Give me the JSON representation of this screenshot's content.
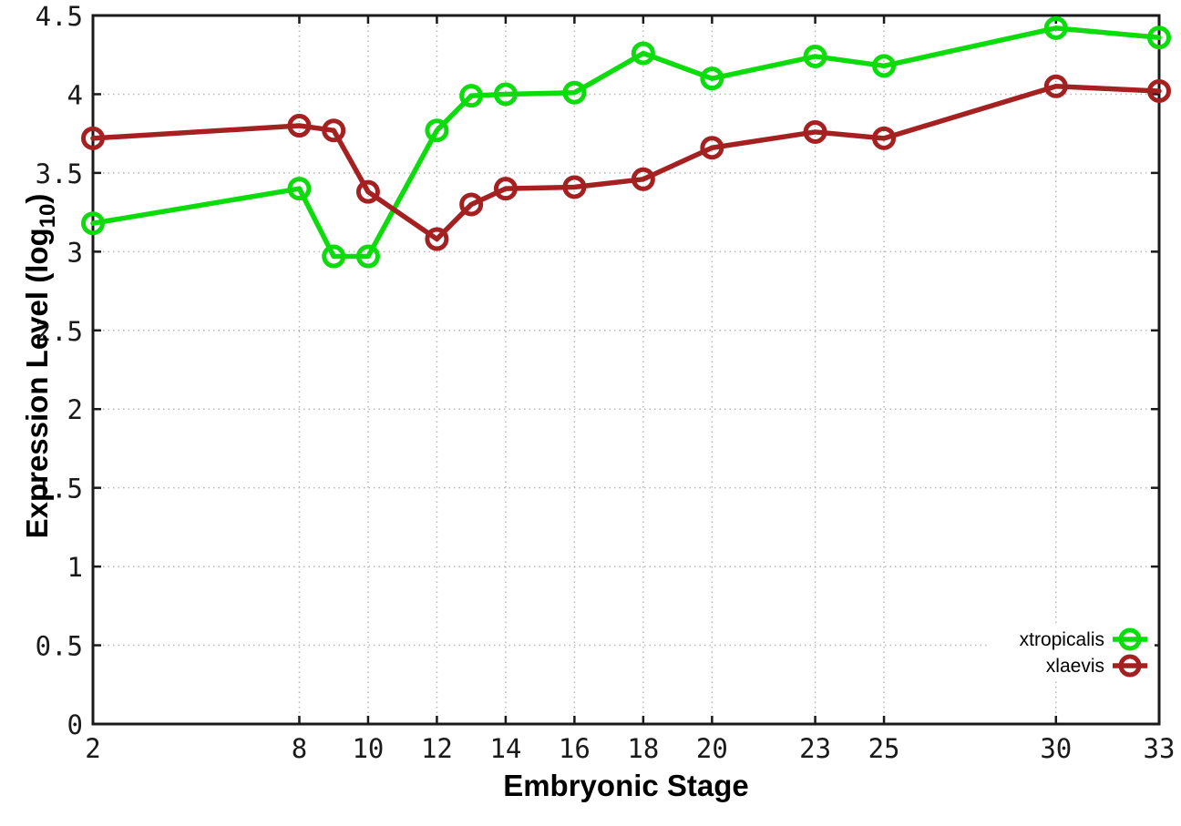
{
  "chart_data": {
    "type": "line",
    "title": "",
    "xlabel": "Embryonic Stage",
    "ylabel": "Expression Level (log10)",
    "ylabel_rich": {
      "main": "Expression Level (log",
      "subscript": "10",
      "suffix": ")"
    },
    "x": [
      2,
      8,
      9,
      10,
      12,
      13,
      14,
      16,
      18,
      20,
      23,
      25,
      30,
      33
    ],
    "series": [
      {
        "name": "xtropicalis",
        "color": "#0cdb0c",
        "marker": "open-circle",
        "values": [
          3.18,
          3.4,
          2.97,
          2.97,
          3.77,
          3.99,
          4.0,
          4.01,
          4.26,
          4.1,
          4.24,
          4.18,
          4.42,
          4.36
        ]
      },
      {
        "name": "xlaevis",
        "color": "#a52121",
        "marker": "open-circle",
        "values": [
          3.72,
          3.8,
          3.77,
          3.38,
          3.08,
          3.3,
          3.4,
          3.41,
          3.46,
          3.66,
          3.76,
          3.72,
          4.05,
          4.02
        ]
      }
    ],
    "xlim": [
      2,
      33
    ],
    "ylim": [
      0,
      4.5
    ],
    "x_ticks": [
      2,
      8,
      10,
      12,
      14,
      16,
      18,
      20,
      23,
      25,
      30,
      33
    ],
    "y_ticks": [
      0,
      0.5,
      1,
      1.5,
      2,
      2.5,
      3,
      3.5,
      4,
      4.5
    ],
    "grid": "dotted",
    "legend_position": "bottom-right",
    "line_style": "linespoints"
  },
  "styles": {
    "background": "#ffffff",
    "grid_color": "#b8b8b8",
    "axis_color": "#1a1a1a",
    "text_color": "#1a1a1a",
    "series_green": "#0cdb0c",
    "series_dark_red": "#a52121"
  }
}
